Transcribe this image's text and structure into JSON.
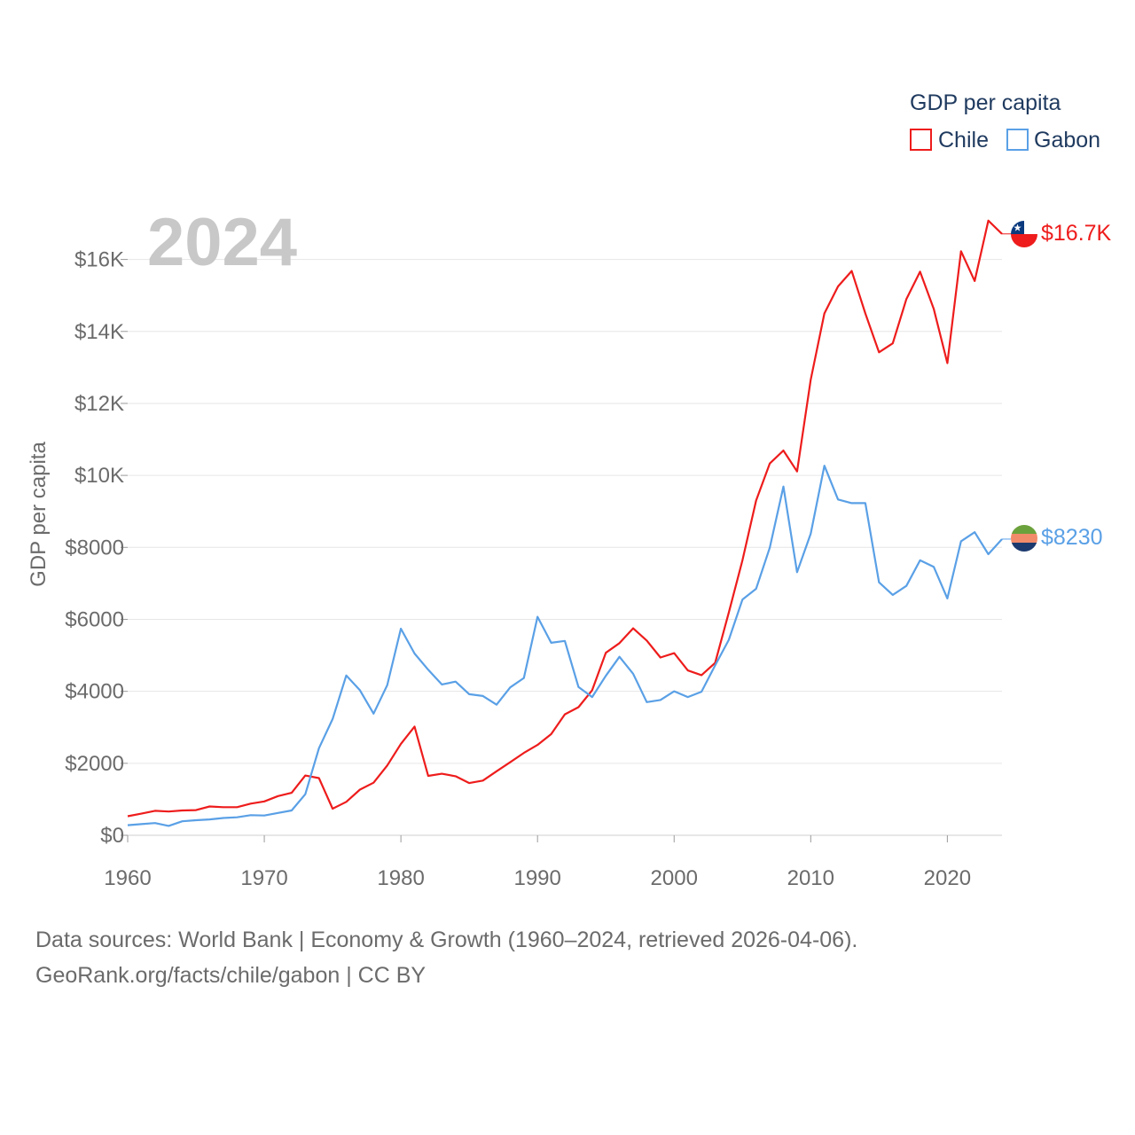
{
  "chart_data": {
    "type": "line",
    "year_label": "2024",
    "legend_title": "GDP per capita",
    "ylabel": "GDP per capita",
    "xlabel": "",
    "xlim": [
      1960,
      2024
    ],
    "ylim": [
      0,
      17000
    ],
    "x_ticks": [
      1960,
      1970,
      1980,
      1990,
      2000,
      2010,
      2020
    ],
    "x_tick_labels": [
      "1960",
      "1970",
      "1980",
      "1990",
      "2000",
      "2010",
      "2020"
    ],
    "y_ticks": [
      0,
      2000,
      4000,
      6000,
      8000,
      10000,
      12000,
      14000,
      16000
    ],
    "y_tick_labels": [
      "$0",
      "$2000",
      "$4000",
      "$6000",
      "$8000",
      "$10K",
      "$12K",
      "$14K",
      "$16K"
    ],
    "x": [
      1960,
      1961,
      1962,
      1963,
      1964,
      1965,
      1966,
      1967,
      1968,
      1969,
      1970,
      1971,
      1972,
      1973,
      1974,
      1975,
      1976,
      1977,
      1978,
      1979,
      1980,
      1981,
      1982,
      1983,
      1984,
      1985,
      1986,
      1987,
      1988,
      1989,
      1990,
      1991,
      1992,
      1993,
      1994,
      1995,
      1996,
      1997,
      1998,
      1999,
      2000,
      2001,
      2002,
      2003,
      2004,
      2005,
      2006,
      2007,
      2008,
      2009,
      2010,
      2011,
      2012,
      2013,
      2014,
      2015,
      2016,
      2017,
      2018,
      2019,
      2020,
      2021,
      2022,
      2023,
      2024
    ],
    "series": [
      {
        "name": "Chile",
        "color": "#ee1c1c",
        "end_label": "$16.7K",
        "values": [
          530,
          600,
          680,
          660,
          690,
          700,
          800,
          780,
          780,
          880,
          940,
          1090,
          1180,
          1660,
          1590,
          740,
          930,
          1270,
          1460,
          1940,
          2540,
          3020,
          1650,
          1710,
          1640,
          1450,
          1520,
          1780,
          2030,
          2290,
          2510,
          2810,
          3360,
          3560,
          4030,
          5070,
          5340,
          5750,
          5410,
          4940,
          5060,
          4580,
          4450,
          4790,
          6190,
          7640,
          9300,
          10330,
          10690,
          10110,
          12660,
          14500,
          15250,
          15680,
          14500,
          13420,
          13670,
          14900,
          15660,
          14630,
          13120,
          16230,
          15400,
          17080,
          16710
        ]
      },
      {
        "name": "Gabon",
        "color": "#5aa0e6",
        "end_label": "$8230",
        "values": [
          280,
          310,
          340,
          260,
          390,
          420,
          440,
          480,
          500,
          560,
          550,
          620,
          690,
          1140,
          2420,
          3230,
          4440,
          4030,
          3380,
          4170,
          5740,
          5050,
          4600,
          4190,
          4270,
          3920,
          3870,
          3630,
          4110,
          4370,
          6070,
          5350,
          5400,
          4120,
          3840,
          4430,
          4960,
          4490,
          3700,
          3760,
          4000,
          3840,
          3990,
          4720,
          5430,
          6550,
          6850,
          7990,
          9690,
          7310,
          8380,
          10270,
          9330,
          9230,
          9230,
          7030,
          6680,
          6930,
          7640,
          7460,
          6580,
          8170,
          8420,
          7810,
          8230
        ]
      }
    ]
  },
  "flags": {
    "chile_icon": "chile-flag-icon",
    "gabon_icon": "gabon-flag-icon"
  },
  "source": {
    "line1": "Data sources: World Bank | Economy & Growth (1960–2024, retrieved 2026-04-06).",
    "line2": "GeoRank.org/facts/chile/gabon | CC BY"
  }
}
